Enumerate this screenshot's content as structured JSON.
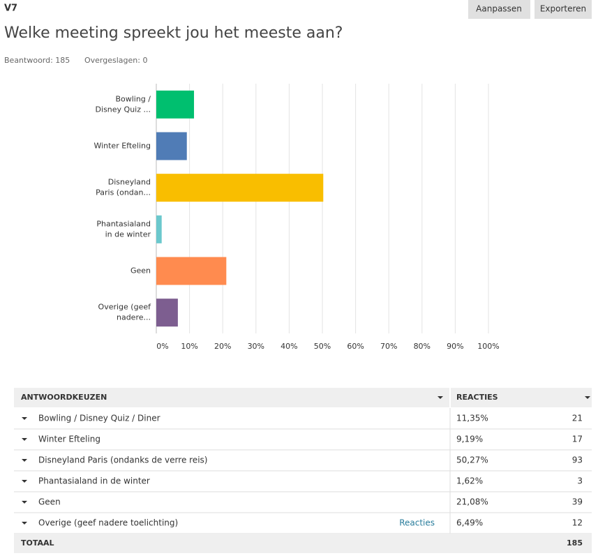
{
  "header": {
    "question_id": "V7",
    "buttons": [
      "Aanpassen",
      "Exporteren"
    ],
    "title": "Welke meeting spreekt jou het meeste aan?",
    "answered": "Beantwoord: 185",
    "skipped": "Overgeslagen: 0"
  },
  "chart_data": {
    "type": "hbar",
    "categories": [
      [
        "Bowling /",
        "Disney Quiz ..."
      ],
      [
        "Winter Efteling"
      ],
      [
        "Disneyland",
        "Paris (ondan..."
      ],
      [
        "Phantasialand",
        "in de winter"
      ],
      [
        "Geen"
      ],
      [
        "Overige (geef",
        "nadere..."
      ]
    ],
    "values": [
      11.35,
      9.19,
      50.27,
      1.62,
      21.08,
      6.49
    ],
    "colors": [
      "#00bf6f",
      "#507cb6",
      "#f9be00",
      "#6bc8cd",
      "#ff8b4f",
      "#7d5e90"
    ],
    "xlim": [
      0,
      100
    ],
    "xticks": [
      {
        "value": 0,
        "label": "0%"
      },
      {
        "value": 10,
        "label": "10%"
      },
      {
        "value": 20,
        "label": "20%"
      },
      {
        "value": 30,
        "label": "30%"
      },
      {
        "value": 40,
        "label": "40%"
      },
      {
        "value": 50,
        "label": "50%"
      },
      {
        "value": 60,
        "label": "60%"
      },
      {
        "value": 70,
        "label": "70%"
      },
      {
        "value": 80,
        "label": "80%"
      },
      {
        "value": 90,
        "label": "90%"
      },
      {
        "value": 100,
        "label": "100%"
      }
    ],
    "grid": true
  },
  "table": {
    "headers": [
      "ANTWOORDKEUZEN",
      "REACTIES"
    ],
    "rows": [
      [
        "Bowling / Disney Quiz / Diner",
        "11,35%",
        "21"
      ],
      [
        "Winter Efteling",
        "9,19%",
        "17"
      ],
      [
        "Disneyland Paris (ondanks de verre reis)",
        "50,27%",
        "93"
      ],
      [
        "Phantasialand in de winter",
        "1,62%",
        "3"
      ],
      [
        "Geen",
        "21,08%",
        "39"
      ],
      [
        "Overige (geef nadere toelichting)",
        "6,49%",
        "12"
      ]
    ],
    "link": "Reacties",
    "total": [
      "TOTAAL",
      "185"
    ]
  }
}
